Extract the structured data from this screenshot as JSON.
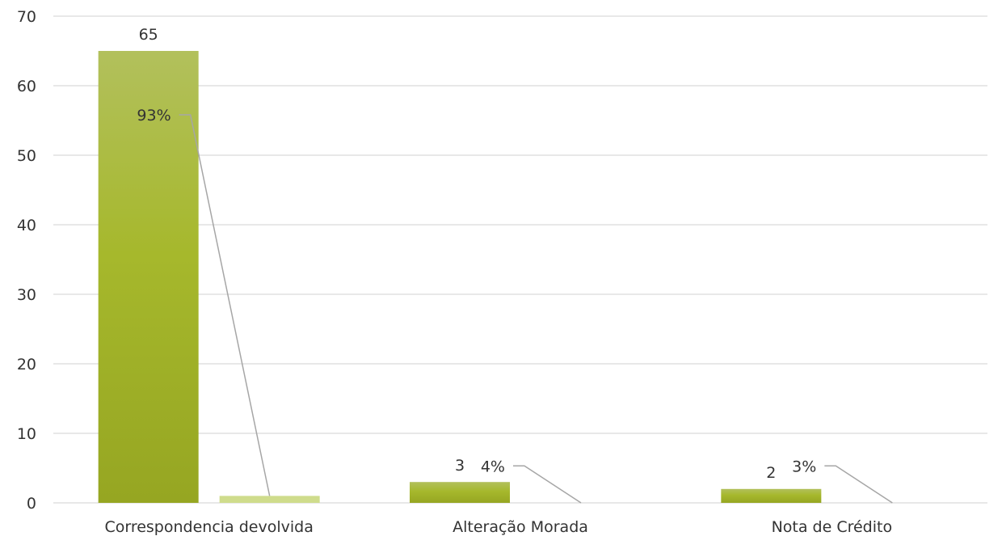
{
  "chart_data": {
    "type": "bar",
    "categories": [
      "Correspondencia devolvida",
      "Alteração Morada",
      "Nota de Crédito"
    ],
    "series": [
      {
        "values": [
          65,
          3,
          2
        ],
        "data_labels": [
          "65",
          "3",
          "2"
        ],
        "color": "#a4b42a"
      },
      {
        "values": [
          1,
          0,
          0
        ],
        "color": "#cfdc8c"
      }
    ],
    "percent_labels": [
      "93%",
      "4%",
      "3%"
    ],
    "percent_label_y": [
      55,
      4.5,
      4.5
    ],
    "ylim": [
      0,
      70
    ],
    "yticks": [
      "0",
      "10",
      "20",
      "30",
      "40",
      "50",
      "60",
      "70"
    ],
    "grid": true,
    "gridline_color": "#d9d9d9",
    "leader_line_color": "#a6a6a6"
  }
}
